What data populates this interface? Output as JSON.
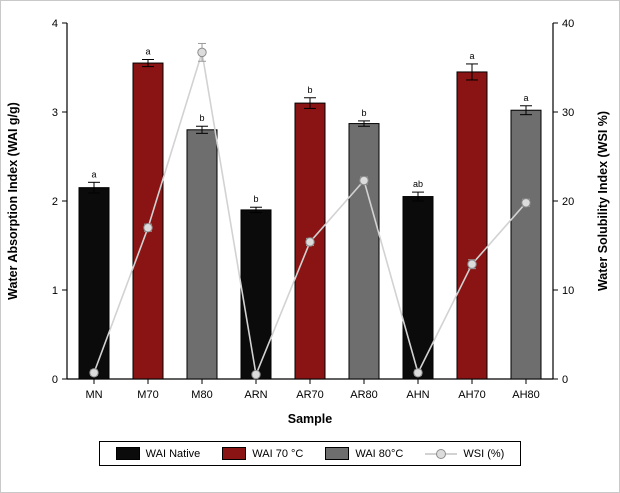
{
  "chart_data": {
    "type": "bar",
    "title": "",
    "xlabel": "Sample",
    "ylabel_left": "Water Absorption Index (WAI g/g)",
    "ylabel_right": "Water Solubility Index (WSI %)",
    "ylim_left": [
      0,
      4
    ],
    "ylim_right": [
      0,
      40
    ],
    "left_ticks": [
      0,
      1,
      2,
      3,
      4
    ],
    "right_ticks": [
      0,
      10,
      20,
      30,
      40
    ],
    "grid": false,
    "legend_position": "bottom",
    "categories": [
      "MN",
      "M70",
      "M80",
      "ARN",
      "AR70",
      "AR80",
      "AHN",
      "AH70",
      "AH80"
    ],
    "bars": {
      "series_note": "one bar per sample; color indicates treatment group",
      "values": [
        2.15,
        3.55,
        2.8,
        1.9,
        3.1,
        2.87,
        2.05,
        3.45,
        3.02
      ],
      "errors": [
        0.06,
        0.04,
        0.04,
        0.03,
        0.06,
        0.03,
        0.05,
        0.09,
        0.05
      ],
      "sig_letters": [
        "a",
        "a",
        "b",
        "b",
        "b",
        "b",
        "ab",
        "a",
        "a"
      ],
      "group_of_bar": [
        "native",
        "70C",
        "80C",
        "native",
        "70C",
        "80C",
        "native",
        "70C",
        "80C"
      ],
      "colors": {
        "native": "#0b0b0b",
        "70C": "#8a1414",
        "80C": "#6e6e6e"
      }
    },
    "line": {
      "name": "WSI (%)",
      "values": [
        0.7,
        17.0,
        36.7,
        0.5,
        15.4,
        22.3,
        0.7,
        12.9,
        19.8
      ],
      "errors": [
        0.3,
        0.4,
        1.0,
        0.2,
        0.4,
        0.4,
        0.3,
        0.5,
        0.4
      ],
      "line_color": "#d2d2d2",
      "marker_fill": "#dcdcdc",
      "marker_stroke": "#8c8c8c"
    },
    "legend": [
      {
        "label": "WAI Native",
        "type": "bar",
        "color": "#0b0b0b"
      },
      {
        "label": "WAI 70 °C",
        "type": "bar",
        "color": "#8a1414"
      },
      {
        "label": "WAI 80°C",
        "type": "bar",
        "color": "#6e6e6e"
      },
      {
        "label": "WSI (%)",
        "type": "line",
        "color": "#d2d2d2"
      }
    ]
  }
}
